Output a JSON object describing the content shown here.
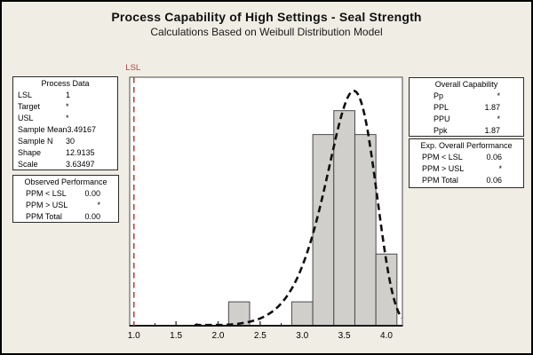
{
  "title": "Process Capability of High Settings - Seal Strength",
  "subtitle": "Calculations Based on Weibull Distribution Model",
  "panels": {
    "process_data": {
      "title": "Process Data",
      "rows": [
        {
          "label": "LSL",
          "value": "1"
        },
        {
          "label": "Target",
          "value": "*"
        },
        {
          "label": "USL",
          "value": "*"
        },
        {
          "label": "Sample Mean",
          "value": "3.49167"
        },
        {
          "label": "Sample N",
          "value": "30"
        },
        {
          "label": "Shape",
          "value": "12.9135"
        },
        {
          "label": "Scale",
          "value": "3.63497"
        }
      ]
    },
    "observed_performance": {
      "title": "Observed Performance",
      "rows": [
        {
          "label": "PPM < LSL",
          "value": "0.00"
        },
        {
          "label": "PPM > USL",
          "value": "*"
        },
        {
          "label": "PPM Total",
          "value": "0.00"
        }
      ]
    },
    "overall_capability": {
      "title": "Overall Capability",
      "rows": [
        {
          "label": "Pp",
          "value": "*"
        },
        {
          "label": "PPL",
          "value": "1.87"
        },
        {
          "label": "PPU",
          "value": "*"
        },
        {
          "label": "Ppk",
          "value": "1.87"
        }
      ]
    },
    "exp_overall_performance": {
      "title": "Exp. Overall Performance",
      "rows": [
        {
          "label": "PPM < LSL",
          "value": "0.06"
        },
        {
          "label": "PPM > USL",
          "value": "*"
        },
        {
          "label": "PPM Total",
          "value": "0.06"
        }
      ]
    }
  },
  "chart_data": {
    "type": "bar",
    "subtype": "capability-histogram-with-weibull-fit",
    "title": "",
    "xlabel": "",
    "ylabel": "",
    "sample_n": 30,
    "bin_width": 0.25,
    "bin_centers": [
      2.25,
      3.0,
      3.25,
      3.5,
      3.75,
      4.0
    ],
    "counts": [
      1,
      1,
      8,
      9,
      8,
      3
    ],
    "xlim": [
      0.95,
      4.19
    ],
    "ylim_counts": [
      0,
      10.4
    ],
    "x_tick_values": [
      1.0,
      1.5,
      2.0,
      2.5,
      3.0,
      3.5,
      4.0
    ],
    "x_tick_labels": [
      "1.0",
      "1.5",
      "2.0",
      "2.5",
      "3.0",
      "3.5",
      "4.0"
    ],
    "x_minor_ticks": [
      1.25,
      1.75,
      2.25,
      2.75,
      3.25,
      3.75
    ],
    "grid": false,
    "legend": "none",
    "fit_curve": {
      "distribution": "weibull",
      "shape": 12.9135,
      "scale": 3.63497,
      "x_start": 1.72,
      "color": "#101010",
      "style": "dashed"
    },
    "spec_lines": [
      {
        "label": "LSL",
        "value": 1.0,
        "color": "#B9433D",
        "style": "dashed"
      }
    ],
    "colors": {
      "background": "#F0EDE4",
      "plot_background": "#FFFFFF",
      "bar_fill": "#D1CFCC",
      "bar_stroke": "#4A4A4A",
      "frame": "#4A4A4A",
      "axis": "#1A1A1A",
      "tick_label": "#000000"
    }
  }
}
